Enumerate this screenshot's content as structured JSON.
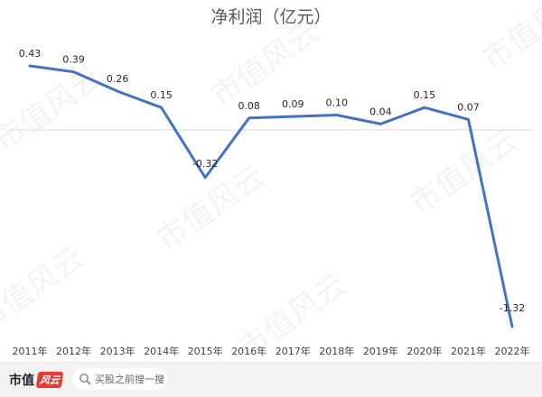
{
  "chart_data": {
    "type": "line",
    "title": "净利润（亿元）",
    "categories": [
      "2011年",
      "2012年",
      "2013年",
      "2014年",
      "2015年",
      "2016年",
      "2017年",
      "2018年",
      "2019年",
      "2020年",
      "2021年",
      "2022年"
    ],
    "values": [
      0.43,
      0.39,
      0.26,
      0.15,
      -0.32,
      0.08,
      0.09,
      0.1,
      0.04,
      0.15,
      0.07,
      -1.32
    ],
    "data_labels": [
      "0.43",
      "0.39",
      "0.26",
      "0.15",
      "-0.32",
      "0.08",
      "0.09",
      "0.10",
      "0.04",
      "0.15",
      "0.07",
      "-1.32"
    ],
    "xlabel": "",
    "ylabel": "",
    "ylim": [
      -1.5,
      0.7
    ],
    "grid": false,
    "legend": "none",
    "line_color": "#4472C4"
  },
  "watermark": {
    "text": "市值风云"
  },
  "footer": {
    "brand_name": "市值",
    "brand_seal": "风云",
    "search_placeholder": "买股之前搜一搜"
  }
}
